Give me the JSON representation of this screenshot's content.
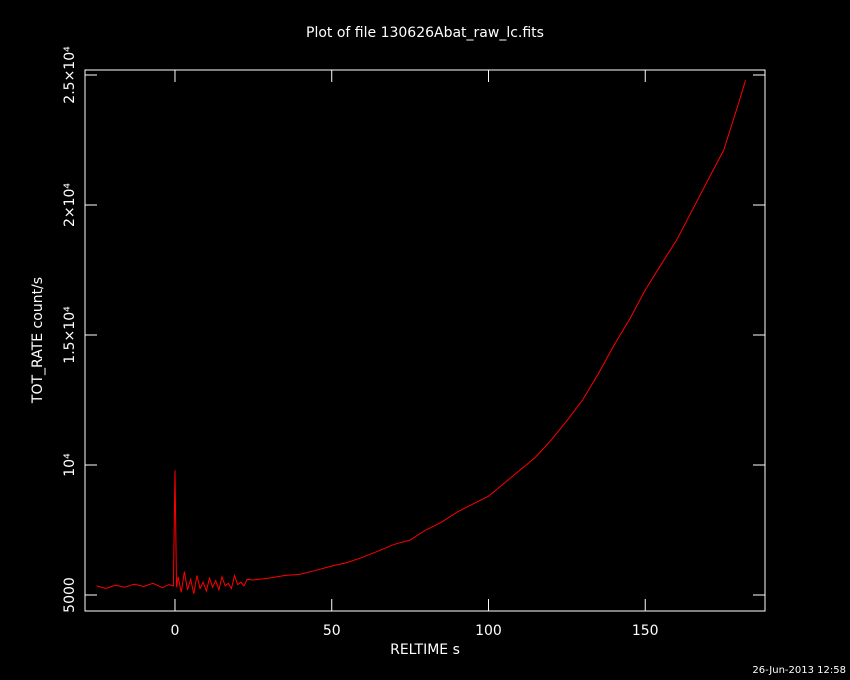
{
  "chart_data": {
    "type": "line",
    "title": "Plot of file 130626Abat_raw_lc.fits",
    "x_label": "RELTIME  s",
    "y_label": "TOT_RATE  count/s",
    "timestamp": "26-Jun-2013 12:58",
    "color": "#ff0000",
    "x": [
      -25,
      -22,
      -19,
      -16,
      -13,
      -10,
      -7,
      -4,
      -2,
      -0.5,
      0,
      0.5,
      1,
      2,
      3,
      4,
      5,
      6,
      7,
      8,
      9,
      10,
      11,
      12,
      13,
      14,
      15,
      16,
      17,
      18,
      19,
      20,
      21,
      22,
      23,
      25,
      30,
      35,
      40,
      45,
      50,
      55,
      60,
      65,
      70,
      75,
      80,
      85,
      90,
      95,
      100,
      105,
      110,
      115,
      120,
      125,
      130,
      135,
      140,
      145,
      150,
      155,
      160,
      165,
      170,
      175,
      180,
      182
    ],
    "values": [
      5350,
      5250,
      5380,
      5300,
      5420,
      5330,
      5450,
      5280,
      5400,
      5350,
      9800,
      5300,
      5700,
      5100,
      5900,
      5200,
      5600,
      5050,
      5750,
      5250,
      5500,
      5150,
      5650,
      5300,
      5550,
      5200,
      5700,
      5350,
      5450,
      5250,
      5750,
      5400,
      5500,
      5350,
      5600,
      5577,
      5650,
      5750,
      5800,
      5950,
      6115,
      6250,
      6460,
      6700,
      6950,
      7115,
      7500,
      7800,
      8190,
      8500,
      8800,
      9300,
      9800,
      10300,
      10960,
      11700,
      12500,
      13500,
      14600,
      15600,
      16730,
      17700,
      18650,
      19800,
      20960,
      22100,
      24000,
      24800
    ],
    "xlim": [
      -28.7,
      188.2
    ],
    "ylim": [
      4385,
      25192
    ],
    "xticks": [
      0,
      50,
      100,
      150
    ],
    "yticks": [
      5000,
      {
        "value": 10000,
        "label": "10⁴"
      },
      {
        "value": 15000,
        "label": "1.5×10⁴"
      },
      {
        "value": 20000,
        "label": "2×10⁴"
      },
      {
        "value": 25000,
        "label": "2.5×10⁴"
      }
    ]
  }
}
